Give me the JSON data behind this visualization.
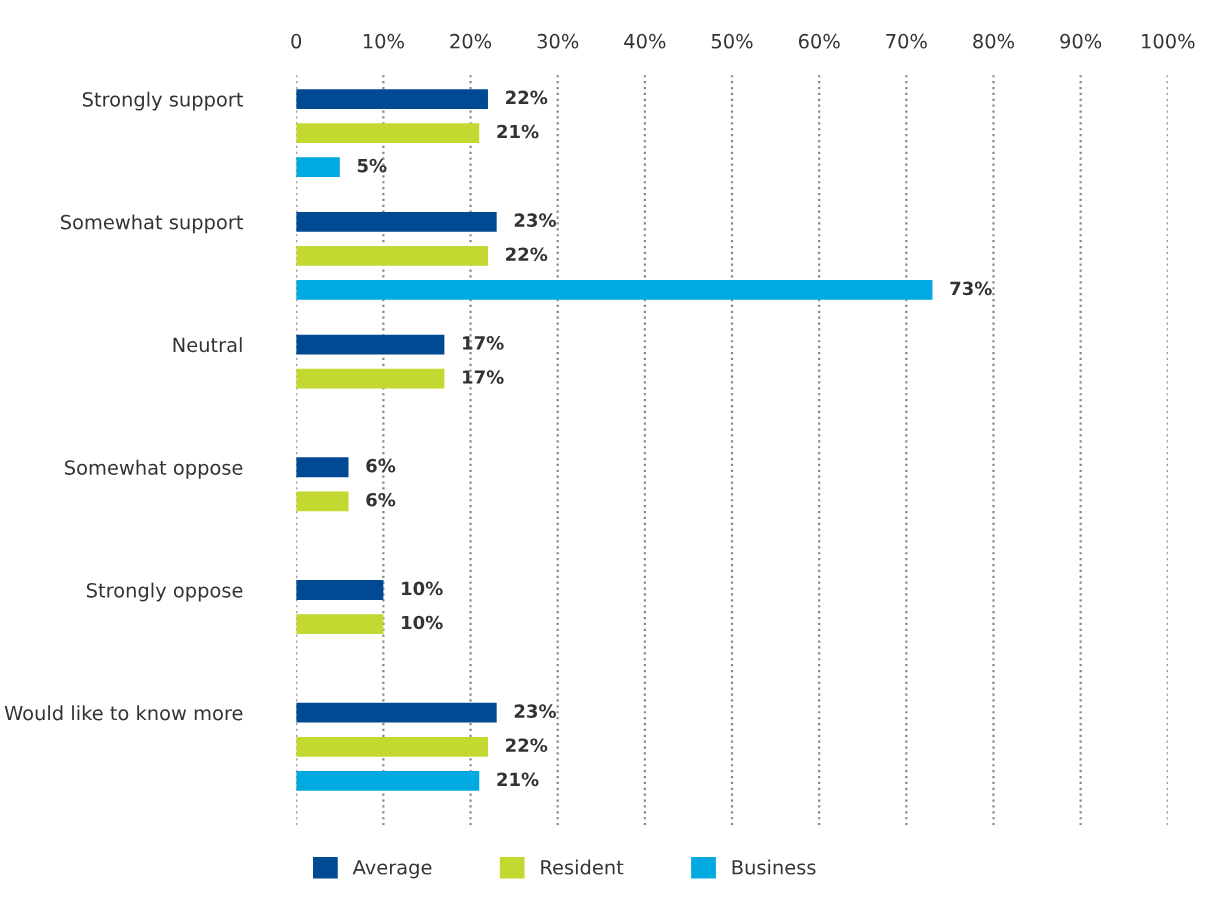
{
  "chart_data": {
    "type": "bar",
    "orientation": "horizontal",
    "categories": [
      "Strongly support",
      "Somewhat support",
      "Neutral",
      "Somewhat oppose",
      "Strongly oppose",
      "Would like to know more"
    ],
    "series": [
      {
        "name": "Average",
        "color": "#004a93",
        "values": [
          22,
          23,
          17,
          6,
          10,
          23
        ],
        "value_labels": [
          "22%",
          "23%",
          "17%",
          "6%",
          "10%",
          "23%"
        ]
      },
      {
        "name": "Resident",
        "color": "#c3d831",
        "values": [
          21,
          22,
          17,
          6,
          10,
          22
        ],
        "value_labels": [
          "21%",
          "22%",
          "17%",
          "6%",
          "10%",
          "22%"
        ]
      },
      {
        "name": "Business",
        "color": "#00a9e0",
        "values": [
          5,
          73,
          null,
          null,
          null,
          21
        ],
        "value_labels": [
          "5%",
          "73%",
          null,
          null,
          null,
          "21%"
        ]
      }
    ],
    "xlim": [
      0,
      100
    ],
    "xticks": [
      0,
      {
        "value": 10,
        "label": "10%"
      },
      {
        "value": 20,
        "label": "20%"
      },
      {
        "value": 30,
        "label": "30%"
      },
      {
        "value": 40,
        "label": "40%"
      },
      {
        "value": 50,
        "label": "50%"
      },
      {
        "value": 60,
        "label": "60%"
      },
      {
        "value": 70,
        "label": "70%"
      },
      {
        "value": 80,
        "label": "80%"
      },
      {
        "value": 90,
        "label": "90%"
      },
      {
        "value": 100,
        "label": "100%"
      }
    ],
    "grid": "x",
    "line_style": "dotted",
    "legend": "bottom"
  }
}
